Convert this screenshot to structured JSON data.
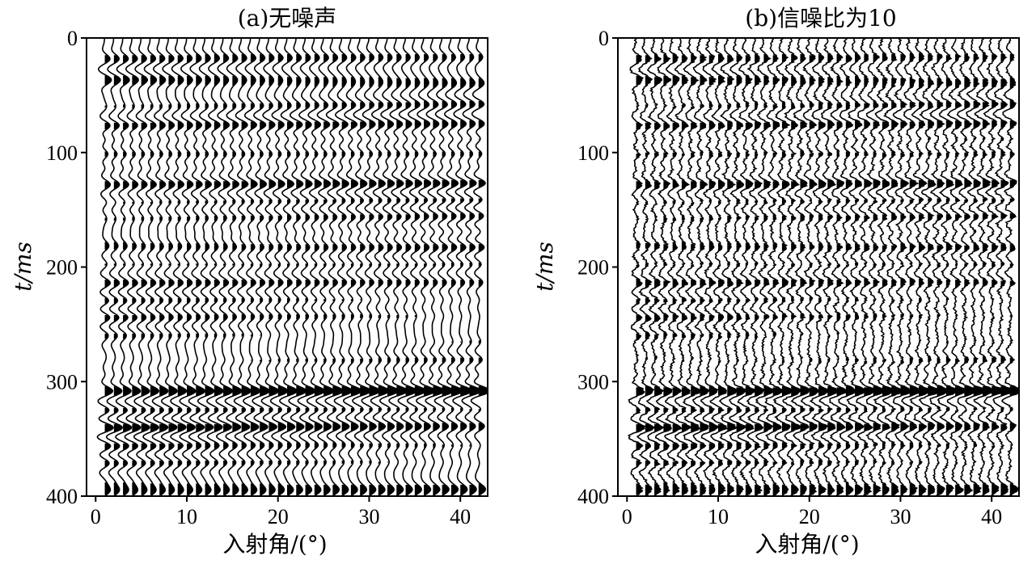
{
  "chart_data": [
    {
      "type": "seismic-wiggle",
      "title": "(a)无噪声",
      "xlabel": "入射角/(°)",
      "ylabel": "t/ms",
      "xlim": [
        -1,
        43
      ],
      "ylim": [
        0,
        400
      ],
      "y_inverted": true,
      "x_ticks": [
        "0",
        "10",
        "20",
        "30",
        "40"
      ],
      "y_ticks": [
        "0",
        "100",
        "200",
        "300",
        "400"
      ],
      "traces_at_angle": [
        1,
        42
      ],
      "trace_step": 1,
      "noise": false,
      "reflection_events_ms": [
        18,
        38,
        57,
        76,
        88,
        101,
        113,
        127,
        141,
        155,
        168,
        182,
        197,
        214,
        230,
        245,
        262,
        280,
        295,
        308,
        325,
        340,
        357,
        372,
        388,
        395
      ],
      "event_amplitudes": [
        0.6,
        1.0,
        0.55,
        0.9,
        0.7,
        0.85,
        0.5,
        1.0,
        0.55,
        0.65,
        0.5,
        1.0,
        0.6,
        0.8,
        0.55,
        0.6,
        0.5,
        0.55,
        0.6,
        1.6,
        0.7,
        1.1,
        0.75,
        0.6,
        0.55,
        1.0
      ]
    },
    {
      "type": "seismic-wiggle",
      "title": "(b)信噪比为10",
      "xlabel": "入射角/(°)",
      "ylabel": "t/ms",
      "xlim": [
        -1,
        43
      ],
      "ylim": [
        0,
        400
      ],
      "y_inverted": true,
      "x_ticks": [
        "0",
        "10",
        "20",
        "30",
        "40"
      ],
      "y_ticks": [
        "0",
        "100",
        "200",
        "300",
        "400"
      ],
      "traces_at_angle": [
        1,
        42
      ],
      "trace_step": 1,
      "noise": true,
      "signal_to_noise_ratio": 10,
      "reflection_events_ms": [
        18,
        38,
        57,
        76,
        88,
        101,
        113,
        127,
        141,
        155,
        168,
        182,
        197,
        214,
        230,
        245,
        262,
        280,
        295,
        308,
        325,
        340,
        357,
        372,
        388,
        395
      ],
      "event_amplitudes": [
        0.6,
        1.0,
        0.55,
        0.9,
        0.7,
        0.85,
        0.5,
        1.0,
        0.55,
        0.65,
        0.5,
        1.0,
        0.6,
        0.8,
        0.55,
        0.6,
        0.5,
        0.55,
        0.6,
        1.6,
        0.7,
        1.1,
        0.75,
        0.6,
        0.55,
        1.0
      ]
    }
  ]
}
